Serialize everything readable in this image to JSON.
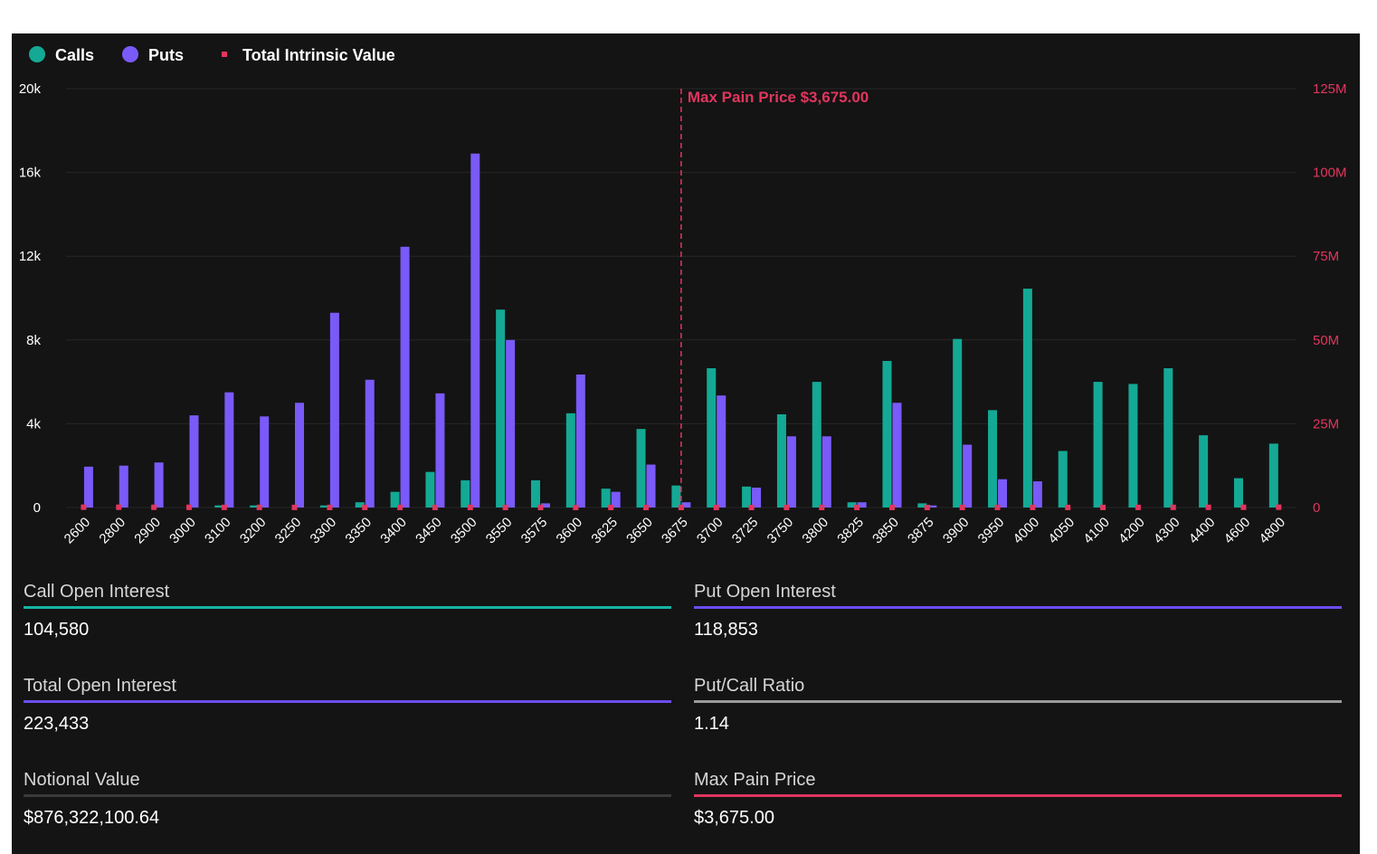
{
  "legend": [
    {
      "label": "Calls",
      "color": "#14a995"
    },
    {
      "label": "Puts",
      "color": "#7a5af8"
    },
    {
      "label": "Total Intrinsic Value",
      "color": "#e0365e"
    }
  ],
  "max_pain_label": "Max Pain Price $3,675.00",
  "chart_data": {
    "type": "bar",
    "categories": [
      "2600",
      "2800",
      "2900",
      "3000",
      "3100",
      "3200",
      "3250",
      "3300",
      "3350",
      "3400",
      "3450",
      "3500",
      "3550",
      "3575",
      "3600",
      "3625",
      "3650",
      "3675",
      "3700",
      "3725",
      "3750",
      "3800",
      "3825",
      "3850",
      "3875",
      "3900",
      "3950",
      "4000",
      "4050",
      "4100",
      "4200",
      "4300",
      "4400",
      "4600",
      "4800"
    ],
    "series": [
      {
        "name": "Calls",
        "axis": "left",
        "color": "#14a995",
        "values": [
          0,
          0,
          0,
          0,
          100,
          100,
          0,
          100,
          250,
          750,
          1700,
          1300,
          9450,
          1300,
          4500,
          900,
          3750,
          1050,
          6650,
          1000,
          4450,
          6000,
          250,
          7000,
          200,
          8050,
          4650,
          10450,
          2700,
          6000,
          5900,
          6650,
          3450,
          1400,
          3050
        ]
      },
      {
        "name": "Puts",
        "axis": "left",
        "color": "#7a5af8",
        "values": [
          1950,
          2000,
          2150,
          4400,
          5500,
          4350,
          5000,
          9300,
          6100,
          12450,
          5450,
          16900,
          8000,
          200,
          6350,
          750,
          2050,
          250,
          5350,
          950,
          3400,
          3400,
          250,
          5000,
          100,
          3000,
          1350,
          1250,
          0,
          0,
          0,
          0,
          0,
          0,
          0
        ]
      },
      {
        "name": "Total Intrinsic Value",
        "axis": "right",
        "type": "scatter",
        "color": "#e0365e",
        "values": [
          101000,
          77500,
          65500,
          54500,
          43500,
          33500,
          28500,
          24000,
          19500,
          15500,
          12500,
          9500,
          7900,
          7300,
          7000,
          6800,
          6800,
          6600,
          6600,
          6800,
          7000,
          8400,
          9500,
          10000,
          11000,
          12500,
          15500,
          18000,
          22000,
          26000,
          34500,
          43500,
          53500,
          73500,
          93500
        ]
      }
    ],
    "yaxis_left": {
      "ticks": [
        "20k",
        "16k",
        "12k",
        "8k",
        "4k",
        "0"
      ],
      "ylim": [
        0,
        20000
      ]
    },
    "yaxis_right": {
      "ticks": [
        "125M",
        "100M",
        "75M",
        "50M",
        "25M",
        "0"
      ],
      "ylim": [
        0,
        125000000
      ]
    },
    "max_pain_category": "3675",
    "legend_position": "top-left"
  },
  "stats": [
    {
      "label": "Call Open Interest",
      "value": "104,580",
      "color": "#17b3a6"
    },
    {
      "label": "Put Open Interest",
      "value": "118,853",
      "color": "#6c4df0"
    },
    {
      "label": "Total Open Interest",
      "value": "223,433",
      "color": "#6c4df0"
    },
    {
      "label": "Put/Call Ratio",
      "value": "1.14",
      "color": "#9a9a9a"
    },
    {
      "label": "Notional Value",
      "value": "$876,322,100.64",
      "color": "#3a3a3a"
    },
    {
      "label": "Max Pain Price",
      "value": "$3,675.00",
      "color": "#e0365e"
    }
  ]
}
